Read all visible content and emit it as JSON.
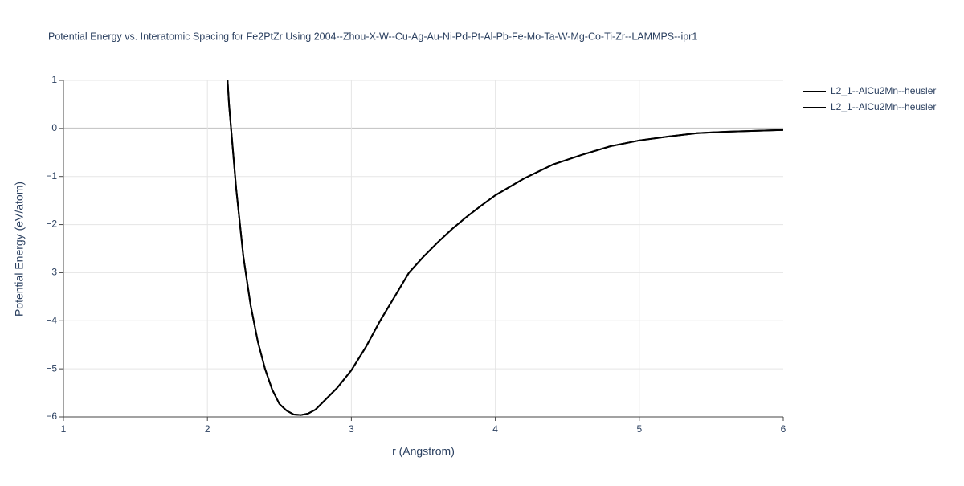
{
  "chart_data": {
    "type": "line",
    "title": "Potential Energy vs. Interatomic Spacing for Fe2PtZr Using 2004--Zhou-X-W--Cu-Ag-Au-Ni-Pd-Pt-Al-Pb-Fe-Mo-Ta-W-Mg-Co-Ti-Zr--LAMMPS--ipr1",
    "x_label": "r (Angstrom)",
    "y_label": "Potential Energy (eV/atom)",
    "x": [
      2.14,
      2.15,
      2.2,
      2.25,
      2.3,
      2.35,
      2.4,
      2.45,
      2.5,
      2.55,
      2.6,
      2.65,
      2.7,
      2.75,
      2.8,
      2.9,
      3.0,
      3.1,
      3.2,
      3.3,
      3.4,
      3.5,
      3.6,
      3.7,
      3.8,
      3.9,
      4.0,
      4.2,
      4.4,
      4.6,
      4.8,
      5.0,
      5.2,
      5.4,
      5.6,
      5.8,
      6.0
    ],
    "series": [
      {
        "name": "L2_1--AlCu2Mn--heusler",
        "color": "#000000",
        "values": [
          1.0,
          0.5,
          -1.25,
          -2.67,
          -3.68,
          -4.43,
          -5.0,
          -5.43,
          -5.73,
          -5.87,
          -5.95,
          -5.96,
          -5.93,
          -5.85,
          -5.7,
          -5.4,
          -5.03,
          -4.55,
          -4.0,
          -3.5,
          -3.0,
          -2.67,
          -2.37,
          -2.09,
          -1.84,
          -1.61,
          -1.39,
          -1.04,
          -0.75,
          -0.55,
          -0.37,
          -0.25,
          -0.17,
          -0.1,
          -0.07,
          -0.05,
          -0.03
        ]
      },
      {
        "name": "L2_1--AlCu2Mn--heusler",
        "color": "#000000",
        "values": [
          1.0,
          0.5,
          -1.25,
          -2.67,
          -3.68,
          -4.43,
          -5.0,
          -5.43,
          -5.73,
          -5.87,
          -5.95,
          -5.96,
          -5.93,
          -5.85,
          -5.7,
          -5.4,
          -5.03,
          -4.55,
          -4.0,
          -3.5,
          -3.0,
          -2.67,
          -2.37,
          -2.09,
          -1.84,
          -1.61,
          -1.39,
          -1.04,
          -0.75,
          -0.55,
          -0.37,
          -0.25,
          -0.17,
          -0.1,
          -0.07,
          -0.05,
          -0.03
        ]
      }
    ],
    "xlim": [
      1,
      6
    ],
    "ylim": [
      -6,
      1
    ],
    "xticks": [
      1,
      2,
      3,
      4,
      5,
      6
    ],
    "yticks": [
      {
        "value": -6,
        "label": "−6"
      },
      {
        "value": -5,
        "label": "−5"
      },
      {
        "value": -4,
        "label": "−4"
      },
      {
        "value": -3,
        "label": "−3"
      },
      {
        "value": -2,
        "label": "−2"
      },
      {
        "value": -1,
        "label": "−1"
      },
      0,
      1
    ],
    "grid": true,
    "legend": "top-right"
  }
}
